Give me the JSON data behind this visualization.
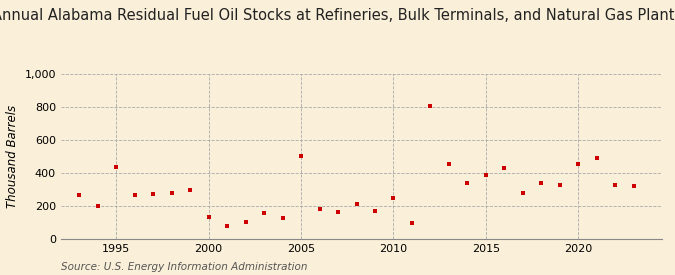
{
  "title": "Annual Alabama Residual Fuel Oil Stocks at Refineries, Bulk Terminals, and Natural Gas Plants",
  "ylabel": "Thousand Barrels",
  "source": "Source: U.S. Energy Information Administration",
  "background_color": "#faefd8",
  "plot_bg_color": "#faefd8",
  "marker_color": "#cc0000",
  "marker": "s",
  "marker_size": 3.5,
  "ylim": [
    0,
    1000
  ],
  "yticks": [
    0,
    200,
    400,
    600,
    800,
    1000
  ],
  "years": [
    1993,
    1994,
    1995,
    1996,
    1997,
    1998,
    1999,
    2000,
    2001,
    2002,
    2003,
    2004,
    2005,
    2006,
    2007,
    2008,
    2009,
    2010,
    2011,
    2012,
    2013,
    2014,
    2015,
    2016,
    2017,
    2018,
    2019,
    2020,
    2021,
    2022,
    2023
  ],
  "values": [
    270,
    200,
    435,
    270,
    275,
    280,
    300,
    135,
    80,
    105,
    160,
    130,
    505,
    185,
    165,
    215,
    170,
    250,
    100,
    810,
    455,
    340,
    390,
    430,
    280,
    340,
    330,
    455,
    490,
    330,
    325
  ],
  "xlim": [
    1992,
    2024.5
  ],
  "xticks": [
    1995,
    2000,
    2005,
    2010,
    2015,
    2020
  ],
  "grid_color": "#aaaaaa",
  "title_fontsize": 10.5,
  "axis_fontsize": 8.5,
  "tick_fontsize": 8,
  "source_fontsize": 7.5
}
